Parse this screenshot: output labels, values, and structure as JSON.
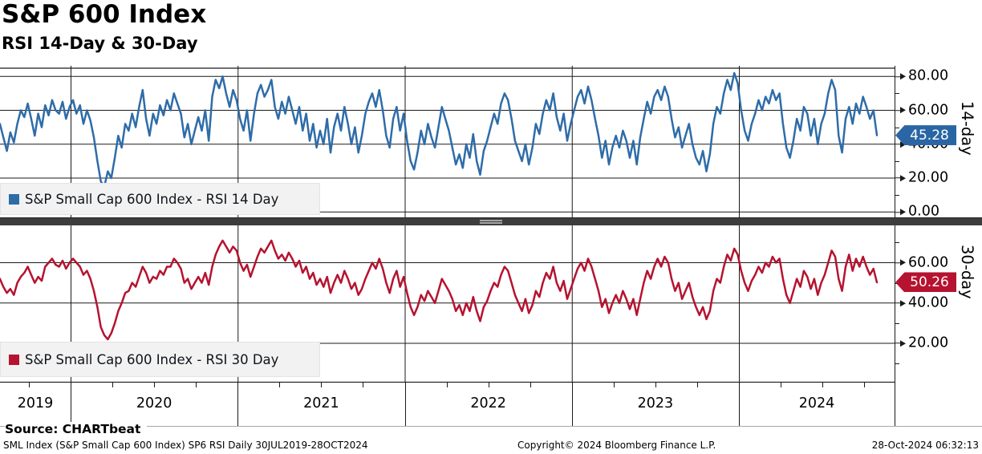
{
  "header": {
    "title": "S&P 600 Index",
    "subtitle": "RSI 14-Day & 30-Day"
  },
  "colors": {
    "rsi14_line": "#2e6ca8",
    "rsi14_badge": "#2a66a4",
    "rsi30_line": "#b5132f",
    "rsi30_badge": "#b5132f",
    "grid": "#1a1a1a",
    "divider": "#3d3d3d",
    "legend_bg": "#f2f2f2"
  },
  "top_panel": {
    "axis_name": "14-day",
    "last_value_label": "45.28",
    "legend_label": "S&P Small Cap 600 Index - RSI 14 Day",
    "major_ticks": [
      {
        "value": 80,
        "label": "80.00"
      },
      {
        "value": 60,
        "label": "60.00"
      },
      {
        "value": 40,
        "label": "40.00"
      },
      {
        "value": 20,
        "label": "20.00"
      },
      {
        "value": 0,
        "label": "0.00"
      }
    ],
    "minor_ticks": [
      70,
      50,
      30,
      10
    ]
  },
  "bottom_panel": {
    "axis_name": "30-day",
    "last_value_label": "50.26",
    "legend_label": "S&P Small Cap 600 Index - RSI 30 Day",
    "major_ticks": [
      {
        "value": 60,
        "label": "60.00"
      },
      {
        "value": 40,
        "label": "40.00"
      },
      {
        "value": 20,
        "label": "20.00"
      }
    ],
    "minor_ticks": [
      70,
      50,
      30,
      10
    ]
  },
  "x_axis": {
    "year_labels": [
      "2019",
      "2020",
      "2021",
      "2022",
      "2023",
      "2024"
    ],
    "year_boundaries": [
      2020,
      2021,
      2022,
      2023,
      2024
    ]
  },
  "footer": {
    "source": "Source: CHARTbeat",
    "description": "SML Index (S&P Small Cap 600 Index) SP6 RSI  Daily 30JUL2019-28OCT2024",
    "copyright": "Copyright© 2024 Bloomberg Finance L.P.",
    "datetime": "28-Oct-2024 06:32:13"
  },
  "chart_data": {
    "type": "line",
    "title": "S&P 600 Index",
    "subtitle": "RSI 14-Day & 30-Day",
    "x_start": 2019.577,
    "x_end": 2024.826,
    "x_tick_years": [
      2020,
      2021,
      2022,
      2023,
      2024
    ],
    "grid": true,
    "legend_position": "bottom-left-inside",
    "series": [
      {
        "name": "S&P Small Cap 600 Index - RSI 14 Day",
        "panel": "top",
        "color": "#2e6ca8",
        "ylim": [
          -2,
          85
        ],
        "gridline_values": [
          0,
          20,
          40,
          60,
          80
        ],
        "last": 45.28,
        "values": [
          52,
          44,
          36,
          47,
          41,
          52,
          60,
          56,
          64,
          55,
          45,
          58,
          50,
          63,
          57,
          66,
          60,
          58,
          65,
          55,
          62,
          66,
          58,
          63,
          52,
          60,
          54,
          44,
          30,
          18,
          15,
          24,
          20,
          32,
          45,
          38,
          52,
          48,
          58,
          50,
          62,
          72,
          55,
          45,
          58,
          52,
          63,
          57,
          66,
          60,
          70,
          64,
          58,
          44,
          52,
          40,
          48,
          56,
          48,
          60,
          42,
          68,
          78,
          73,
          80,
          70,
          62,
          72,
          66,
          55,
          48,
          60,
          42,
          58,
          70,
          75,
          68,
          72,
          78,
          62,
          55,
          65,
          58,
          68,
          60,
          52,
          62,
          48,
          58,
          42,
          52,
          38,
          48,
          40,
          55,
          35,
          50,
          58,
          48,
          62,
          52,
          40,
          50,
          35,
          45,
          58,
          65,
          70,
          62,
          72,
          60,
          45,
          38,
          55,
          62,
          48,
          58,
          42,
          30,
          25,
          35,
          48,
          40,
          52,
          44,
          38,
          50,
          62,
          55,
          48,
          38,
          28,
          34,
          26,
          40,
          32,
          46,
          30,
          22,
          36,
          42,
          50,
          58,
          52,
          64,
          70,
          66,
          55,
          42,
          36,
          30,
          40,
          28,
          38,
          52,
          46,
          58,
          66,
          60,
          70,
          56,
          48,
          58,
          42,
          52,
          60,
          68,
          72,
          64,
          74,
          66,
          55,
          45,
          32,
          42,
          28,
          38,
          45,
          38,
          48,
          42,
          32,
          42,
          28,
          44,
          55,
          65,
          58,
          68,
          72,
          66,
          74,
          68,
          55,
          44,
          50,
          38,
          45,
          52,
          40,
          32,
          28,
          36,
          24,
          34,
          52,
          62,
          58,
          70,
          78,
          72,
          82,
          76,
          60,
          48,
          42,
          52,
          58,
          66,
          60,
          68,
          64,
          72,
          66,
          70,
          52,
          38,
          32,
          42,
          55,
          48,
          62,
          58,
          45,
          55,
          40,
          52,
          58,
          70,
          78,
          72,
          45,
          35,
          55,
          62,
          52,
          64,
          58,
          68,
          62,
          55,
          60,
          45.28
        ]
      },
      {
        "name": "S&P Small Cap 600 Index - RSI 30 Day",
        "panel": "bottom",
        "color": "#b5132f",
        "ylim": [
          0,
          78
        ],
        "gridline_values": [
          20,
          40,
          60
        ],
        "last": 50.26,
        "values": [
          52,
          48,
          45,
          47,
          44,
          50,
          53,
          55,
          58,
          54,
          50,
          53,
          51,
          58,
          60,
          62,
          59,
          58,
          61,
          57,
          60,
          62,
          60,
          58,
          54,
          56,
          52,
          46,
          38,
          28,
          24,
          22,
          25,
          30,
          36,
          40,
          45,
          46,
          50,
          48,
          53,
          58,
          55,
          50,
          53,
          52,
          56,
          54,
          58,
          58,
          62,
          60,
          57,
          50,
          52,
          47,
          50,
          53,
          50,
          55,
          49,
          58,
          64,
          68,
          71,
          68,
          65,
          68,
          66,
          60,
          56,
          59,
          53,
          58,
          63,
          67,
          65,
          68,
          71,
          66,
          62,
          64,
          61,
          65,
          62,
          58,
          61,
          55,
          58,
          52,
          55,
          49,
          52,
          48,
          53,
          45,
          50,
          54,
          50,
          56,
          52,
          47,
          50,
          44,
          47,
          52,
          56,
          60,
          57,
          62,
          57,
          50,
          45,
          52,
          56,
          48,
          53,
          45,
          38,
          34,
          38,
          44,
          41,
          46,
          43,
          40,
          46,
          52,
          49,
          46,
          42,
          36,
          39,
          34,
          40,
          36,
          43,
          36,
          31,
          38,
          41,
          46,
          50,
          48,
          54,
          58,
          56,
          50,
          44,
          40,
          36,
          42,
          35,
          39,
          46,
          43,
          50,
          55,
          52,
          58,
          50,
          46,
          51,
          42,
          47,
          52,
          57,
          60,
          56,
          62,
          58,
          52,
          46,
          38,
          42,
          35,
          40,
          44,
          40,
          46,
          42,
          37,
          42,
          34,
          42,
          50,
          56,
          52,
          58,
          62,
          58,
          63,
          60,
          52,
          46,
          50,
          42,
          46,
          50,
          43,
          38,
          34,
          38,
          32,
          36,
          46,
          52,
          50,
          58,
          64,
          61,
          67,
          64,
          56,
          50,
          46,
          51,
          54,
          58,
          55,
          60,
          58,
          63,
          60,
          62,
          52,
          44,
          40,
          46,
          52,
          48,
          56,
          53,
          47,
          52,
          44,
          50,
          54,
          60,
          66,
          63,
          52,
          46,
          58,
          64,
          56,
          62,
          58,
          63,
          58,
          54,
          57,
          50.26
        ]
      }
    ]
  }
}
